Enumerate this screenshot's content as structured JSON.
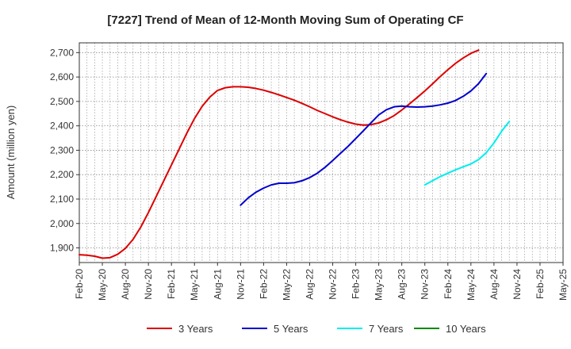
{
  "chart_data": {
    "type": "line",
    "title": "[7227]  Trend of Mean of 12-Month Moving Sum of Operating CF",
    "xlabel": "",
    "ylabel": "Amount (million yen)",
    "ylim": [
      1840,
      2740
    ],
    "yticks": [
      1900,
      2000,
      2100,
      2200,
      2300,
      2400,
      2500,
      2600,
      2700
    ],
    "ytick_labels": [
      "1,900",
      "2,000",
      "2,100",
      "2,200",
      "2,300",
      "2,400",
      "2,500",
      "2,600",
      "2,700"
    ],
    "xtick_labels": [
      "Feb-20",
      "May-20",
      "Aug-20",
      "Nov-20",
      "Feb-21",
      "May-21",
      "Aug-21",
      "Nov-21",
      "Feb-22",
      "May-22",
      "Aug-22",
      "Nov-22",
      "Feb-23",
      "May-23",
      "Aug-23",
      "Nov-23",
      "Feb-24",
      "May-24",
      "Aug-24",
      "Nov-24",
      "Feb-25",
      "May-25"
    ],
    "x_months_total": 63,
    "grid": true,
    "legend_position": "bottom",
    "series": [
      {
        "name": "3 Years",
        "color": "#dd0000",
        "start_month": 0,
        "values": [
          1872,
          1870,
          1866,
          1858,
          1860,
          1874,
          1898,
          1935,
          1985,
          2045,
          2110,
          2175,
          2240,
          2305,
          2370,
          2430,
          2480,
          2518,
          2545,
          2556,
          2560,
          2560,
          2558,
          2553,
          2546,
          2537,
          2527,
          2516,
          2505,
          2492,
          2478,
          2463,
          2450,
          2437,
          2425,
          2415,
          2407,
          2403,
          2405,
          2412,
          2425,
          2442,
          2465,
          2490,
          2516,
          2543,
          2572,
          2602,
          2630,
          2656,
          2678,
          2697,
          2710
        ]
      },
      {
        "name": "5 Years",
        "color": "#0000cc",
        "start_month": 21,
        "values": [
          2075,
          2105,
          2128,
          2145,
          2158,
          2165,
          2165,
          2167,
          2175,
          2188,
          2206,
          2230,
          2258,
          2287,
          2316,
          2348,
          2380,
          2413,
          2445,
          2466,
          2478,
          2481,
          2478,
          2477,
          2478,
          2481,
          2486,
          2493,
          2504,
          2521,
          2543,
          2573,
          2614
        ]
      },
      {
        "name": "7 Years",
        "color": "#00eeee",
        "start_month": 45,
        "values": [
          2158,
          2175,
          2192,
          2206,
          2220,
          2232,
          2244,
          2262,
          2290,
          2330,
          2378,
          2418
        ]
      },
      {
        "name": "10 Years",
        "color": "#008800",
        "start_month": 0,
        "values": []
      }
    ]
  }
}
